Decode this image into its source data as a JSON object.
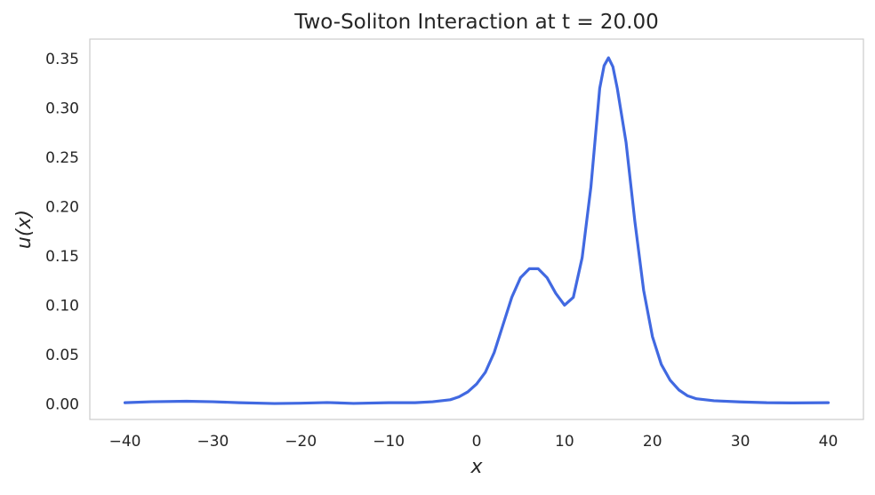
{
  "chart_data": {
    "type": "line",
    "title": "Two-Soliton Interaction at t = 20.00",
    "xlabel": "x",
    "ylabel": "u(x)",
    "xlim": [
      -44,
      44
    ],
    "ylim": [
      -0.016,
      0.37
    ],
    "grid": false,
    "x_ticks": [
      -40,
      -30,
      -20,
      -10,
      0,
      10,
      20,
      30,
      40
    ],
    "x_tick_labels": [
      "−40",
      "−30",
      "−20",
      "−10",
      "0",
      "10",
      "20",
      "30",
      "40"
    ],
    "y_ticks": [
      0.0,
      0.05,
      0.1,
      0.15,
      0.2,
      0.25,
      0.3,
      0.35
    ],
    "y_tick_labels": [
      "0.00",
      "0.05",
      "0.10",
      "0.15",
      "0.20",
      "0.25",
      "0.30",
      "0.35"
    ],
    "series": [
      {
        "color": "#4169e1",
        "x": [
          -40,
          -37,
          -33,
          -30,
          -27,
          -23,
          -20,
          -17,
          -14,
          -10,
          -7,
          -5,
          -3,
          -2,
          -1,
          0,
          1,
          2,
          3,
          4,
          5,
          6,
          7,
          8,
          9,
          10,
          11,
          12,
          13,
          13.5,
          14,
          14.5,
          15,
          15.5,
          16,
          17,
          18,
          19,
          20,
          21,
          22,
          23,
          24,
          25,
          27,
          30,
          33,
          36,
          40
        ],
        "y": [
          0.001,
          0.002,
          0.0025,
          0.002,
          0.001,
          0.0002,
          0.0005,
          0.0012,
          0.0003,
          0.001,
          0.001,
          0.002,
          0.004,
          0.007,
          0.012,
          0.02,
          0.032,
          0.052,
          0.08,
          0.108,
          0.128,
          0.137,
          0.137,
          0.128,
          0.112,
          0.1,
          0.108,
          0.148,
          0.22,
          0.27,
          0.32,
          0.343,
          0.351,
          0.342,
          0.32,
          0.265,
          0.185,
          0.115,
          0.068,
          0.04,
          0.024,
          0.014,
          0.008,
          0.005,
          0.003,
          0.0018,
          0.001,
          0.0008,
          0.001
        ]
      }
    ]
  }
}
